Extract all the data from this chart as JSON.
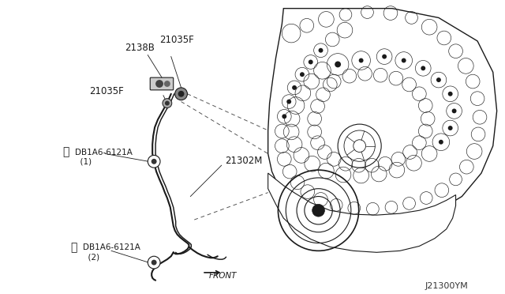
{
  "bg_color": "#ffffff",
  "line_color": "#1a1a1a",
  "text_color": "#1a1a1a",
  "dash_color": "#555555",
  "diagram_id": "J21300YM",
  "label_2138B": "2138B",
  "label_21035F_1": "21035F",
  "label_21035F_2": "21035F",
  "label_21302M": "21302M",
  "label_bolt1": "DB1A6-6121A\n　(1)",
  "label_bolt2": "DB1A6-6121A\n　(2)",
  "label_front": "FRONT"
}
